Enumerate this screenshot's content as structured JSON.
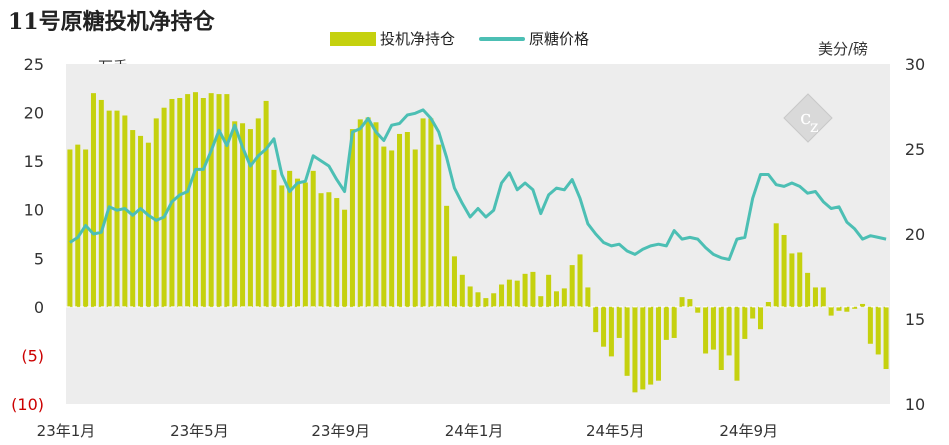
{
  "chart_data": {
    "type": "bar+line",
    "title": "11号原糖投机净持仓",
    "left_unit": "万手",
    "right_unit": "美分/磅",
    "legend": [
      "投机净持仓",
      "原糖价格"
    ],
    "colors": {
      "bars": "#c5d10e",
      "line": "#4cbfb4",
      "negative_tick": "#cc0000",
      "plot_bg": "#ededed"
    },
    "y_left": {
      "min": -10,
      "max": 25,
      "ticks": [
        25,
        20,
        15,
        10,
        5,
        0,
        -5,
        -10
      ],
      "tick_labels": [
        "25",
        "20",
        "15",
        "10",
        "5",
        "0",
        "(5)",
        "(10)"
      ]
    },
    "y_right": {
      "min": 10,
      "max": 30,
      "ticks": [
        30,
        25,
        20,
        15,
        10
      ]
    },
    "x_labels": [
      "23年1月",
      "23年5月",
      "23年9月",
      "24年1月",
      "24年5月",
      "24年9月"
    ],
    "x_label_index": [
      0,
      17,
      35,
      52,
      70,
      87
    ],
    "net_position": [
      16.2,
      16.7,
      16.2,
      22.0,
      21.3,
      20.2,
      20.2,
      19.7,
      18.2,
      17.6,
      16.9,
      19.4,
      20.5,
      21.4,
      21.5,
      21.9,
      22.1,
      21.5,
      22.0,
      21.9,
      21.9,
      19.1,
      18.9,
      18.3,
      19.4,
      21.2,
      14.1,
      12.5,
      14.0,
      13.2,
      12.8,
      14.0,
      11.7,
      11.8,
      11.2,
      10.0,
      18.3,
      19.3,
      19.5,
      19.0,
      16.5,
      16.1,
      17.8,
      18.0,
      16.2,
      19.4,
      19.4,
      16.7,
      10.4,
      5.2,
      3.3,
      2.1,
      1.5,
      0.9,
      1.4,
      2.3,
      2.8,
      2.7,
      3.4,
      3.6,
      1.1,
      3.3,
      1.6,
      1.9,
      4.3,
      5.4,
      2.0,
      -2.6,
      -4.1,
      -5.1,
      -3.2,
      -7.1,
      -8.8,
      -8.5,
      -8.0,
      -7.6,
      -3.4,
      -3.2,
      1.0,
      0.8,
      -0.6,
      -4.8,
      -4.4,
      -6.5,
      -5.0,
      -7.6,
      -3.3,
      -1.2,
      -2.3,
      0.5,
      8.6,
      7.4,
      5.5,
      5.6,
      3.5,
      2.0,
      2.0,
      -0.9,
      -0.4,
      -0.5,
      -0.2,
      0.3,
      -3.8,
      -4.9,
      -6.4
    ],
    "price": [
      19.5,
      19.8,
      20.5,
      20.0,
      20.1,
      21.6,
      21.4,
      21.5,
      21.1,
      21.5,
      21.1,
      20.8,
      21.0,
      21.9,
      22.3,
      22.5,
      23.8,
      23.8,
      24.9,
      26.1,
      25.2,
      26.4,
      25.1,
      24.0,
      24.6,
      25.0,
      25.6,
      23.5,
      22.5,
      23.0,
      23.1,
      24.6,
      24.3,
      24.0,
      23.2,
      22.5,
      26.0,
      26.2,
      26.8,
      26.0,
      25.5,
      26.4,
      26.5,
      27.0,
      27.1,
      27.3,
      26.8,
      26.0,
      24.5,
      22.7,
      21.8,
      21.0,
      21.5,
      21.0,
      21.4,
      23.0,
      23.6,
      22.6,
      23.0,
      22.6,
      21.2,
      22.3,
      22.7,
      22.6,
      23.2,
      22.1,
      20.6,
      20.0,
      19.5,
      19.3,
      19.4,
      19.0,
      18.8,
      19.1,
      19.3,
      19.4,
      19.3,
      20.2,
      19.7,
      19.8,
      19.7,
      19.2,
      18.8,
      18.6,
      18.5,
      19.7,
      19.8,
      22.1,
      23.5,
      23.5,
      22.9,
      22.8,
      23.0,
      22.8,
      22.4,
      22.5,
      21.9,
      21.5,
      21.6,
      20.7,
      20.3,
      19.7,
      19.9,
      19.8,
      19.7
    ]
  }
}
